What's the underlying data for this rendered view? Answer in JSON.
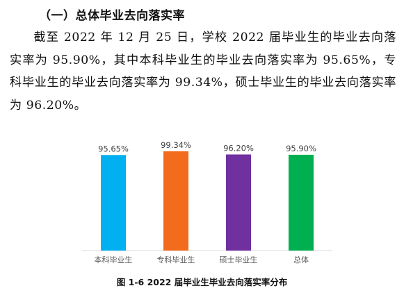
{
  "document": {
    "heading": "（一）总体毕业去向落实率",
    "paragraph": "截至 2022 年 12 月 25 日，学校 2022 届毕业生的毕业去向落实率为 95.90%，其中本科毕业生的毕业去向落实率为 95.65%，专科毕业生的毕业去向落实率为 99.34%，硕士毕业生的毕业去向落实率为 96.20%。",
    "caption": "图 1-6    2022 届毕业生毕业去向落实率分布"
  },
  "chart_data": {
    "type": "bar",
    "categories": [
      "本科毕业生",
      "专科毕业生",
      "硕士毕业生",
      "总体"
    ],
    "values": [
      95.65,
      99.34,
      96.2,
      95.9
    ],
    "value_labels": [
      "95.65%",
      "99.34%",
      "96.20%",
      "95.90%"
    ],
    "colors": [
      "#00b0f0",
      "#f36b1c",
      "#7030a0",
      "#00b050"
    ],
    "title": "",
    "xlabel": "",
    "ylabel": "",
    "ylim": [
      0,
      99.34
    ],
    "grid": false,
    "legend": "none"
  }
}
